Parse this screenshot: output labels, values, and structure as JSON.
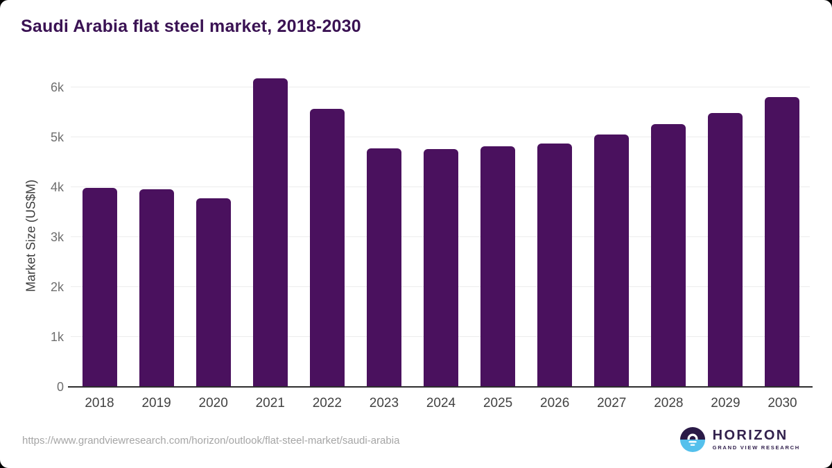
{
  "chart_data": {
    "type": "bar",
    "title": "Saudi Arabia flat steel market, 2018-2030",
    "xlabel": "",
    "ylabel": "Market Size (US$M)",
    "categories": [
      "2018",
      "2019",
      "2020",
      "2021",
      "2022",
      "2023",
      "2024",
      "2025",
      "2026",
      "2027",
      "2028",
      "2029",
      "2030"
    ],
    "values": [
      3985,
      3960,
      3780,
      6185,
      5570,
      4775,
      4770,
      4820,
      4875,
      5055,
      5265,
      5490,
      5805
    ],
    "ylim": [
      0,
      6360
    ],
    "yticks": [
      0,
      1000,
      2000,
      3000,
      4000,
      5000,
      6000
    ],
    "ytick_labels": [
      "0",
      "1k",
      "2k",
      "3k",
      "4k",
      "5k",
      "6k"
    ],
    "grid": true,
    "legend": false,
    "bar_color": "#4a115e"
  },
  "colors": {
    "bar": "#4a115e",
    "title": "#3a1253",
    "gridline": "#ececec",
    "axis_line": "#2e2e2e",
    "logo_navy": "#2a1a47",
    "logo_blue": "#54c0ec"
  },
  "footer": {
    "source_url": "https://www.grandviewresearch.com/horizon/outlook/flat-steel-market/saudi-arabia",
    "logo": {
      "brand": "HORIZON",
      "sub": "GRAND VIEW RESEARCH"
    }
  }
}
